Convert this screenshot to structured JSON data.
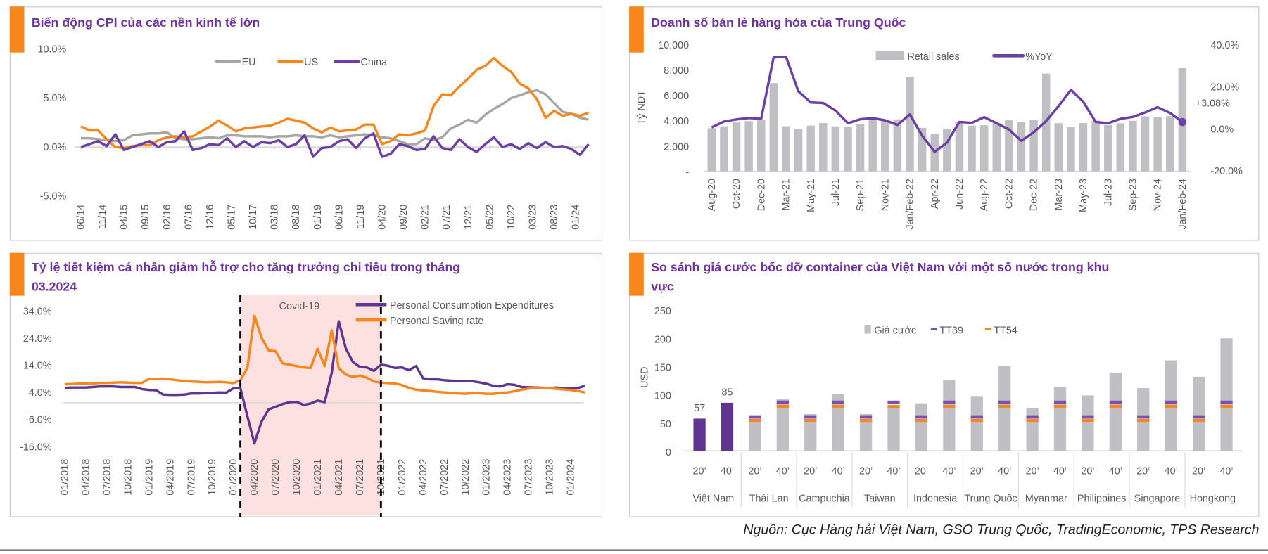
{
  "panels": {
    "cpi_title": "Biến động CPI của các nền kinh tế lớn",
    "retail_title": "Doanh số bán lẻ hàng hóa của Trung Quốc",
    "saving_title": "Tỷ lệ tiết kiệm cá nhân giảm hỗ trợ cho tăng trưởng chi tiêu trong tháng 03.2024",
    "container_title": "So sánh giá cước bốc dỡ container của Việt Nam với một số nước trong khu vực"
  },
  "footer": {
    "source": "Nguồn: Cục Hàng hải Việt Nam, GSO Trung Quốc, TradingEconomic, TPS Research"
  },
  "colors": {
    "accent_orange": "#f7861c",
    "title_purple": "#7030a0",
    "purple": "#6b3fa3",
    "gray": "#a6a6a6",
    "bar_gray": "#c0c0c4",
    "shade": "#fde0e0"
  },
  "chart_data": [
    {
      "type": "line",
      "title": "Biến động CPI của các nền kinh tế lớn",
      "ylim": [
        -5,
        10
      ],
      "yticks": [
        {
          "value": 10,
          "label": "10.0%"
        },
        {
          "value": 5,
          "label": "5.0%"
        },
        {
          "value": 0,
          "label": "0.0%"
        },
        {
          "value": -5,
          "label": "-5.0%"
        }
      ],
      "xticks": [
        "06/14",
        "11/14",
        "04/15",
        "09/15",
        "02/16",
        "07/16",
        "12/16",
        "05/17",
        "10/17",
        "03/18",
        "08/18",
        "01/19",
        "06/19",
        "11/19",
        "04/20",
        "09/20",
        "02/21",
        "07/21",
        "12/21",
        "05/22",
        "10/22",
        "03/23",
        "08/23",
        "01/24"
      ],
      "legend_position": "top",
      "x": [
        "06/14",
        "08/14",
        "10/14",
        "12/14",
        "02/15",
        "04/15",
        "06/15",
        "08/15",
        "10/15",
        "12/15",
        "02/16",
        "04/16",
        "06/16",
        "08/16",
        "10/16",
        "12/16",
        "02/17",
        "04/17",
        "06/17",
        "08/17",
        "10/17",
        "12/17",
        "02/18",
        "04/18",
        "06/18",
        "08/18",
        "10/18",
        "12/18",
        "02/19",
        "04/19",
        "06/19",
        "08/19",
        "10/19",
        "12/19",
        "02/20",
        "04/20",
        "06/20",
        "08/20",
        "10/20",
        "12/20",
        "02/21",
        "04/21",
        "06/21",
        "08/21",
        "10/21",
        "12/21",
        "02/22",
        "04/22",
        "06/22",
        "08/22",
        "10/22",
        "12/22",
        "02/23",
        "04/23",
        "06/23",
        "08/23",
        "10/23",
        "12/23",
        "02/24",
        "04/24"
      ],
      "series": [
        {
          "name": "EU",
          "color": "#a6a6a6",
          "values": [
            0.9,
            0.9,
            0.8,
            0.7,
            0.6,
            0.7,
            1.2,
            1.3,
            1.4,
            1.4,
            1.5,
            0.9,
            0.8,
            0.8,
            0.9,
            1.0,
            0.9,
            1.2,
            1.2,
            1.1,
            1.1,
            1.1,
            1.0,
            1.1,
            1.1,
            1.2,
            1.1,
            1.1,
            1.0,
            1.2,
            1.0,
            1.1,
            1.2,
            1.3,
            1.2,
            1.0,
            0.9,
            0.6,
            0.3,
            0.3,
            0.9,
            0.7,
            1.0,
            1.9,
            2.3,
            2.8,
            2.5,
            3.3,
            3.9,
            4.4,
            5.0,
            5.3,
            5.6,
            5.8,
            5.4,
            4.5,
            3.6,
            3.4,
            3.0,
            2.8
          ]
        },
        {
          "name": "US",
          "color": "#f7861c",
          "values": [
            2.1,
            1.7,
            1.7,
            0.8,
            0.0,
            -0.1,
            0.1,
            0.2,
            0.2,
            0.7,
            1.0,
            1.1,
            1.0,
            1.1,
            1.6,
            2.1,
            2.7,
            2.2,
            1.6,
            1.9,
            2.0,
            2.1,
            2.2,
            2.5,
            2.9,
            2.7,
            2.5,
            1.9,
            1.5,
            2.0,
            1.6,
            1.7,
            1.8,
            2.3,
            2.3,
            0.3,
            0.6,
            1.3,
            1.2,
            1.4,
            1.7,
            4.2,
            5.4,
            5.3,
            6.2,
            7.0,
            7.9,
            8.3,
            9.1,
            8.3,
            7.7,
            6.5,
            6.0,
            4.9,
            3.0,
            3.7,
            3.2,
            3.4,
            3.2,
            3.5
          ]
        },
        {
          "name": "China",
          "color": "#6b3fa3",
          "values": [
            0.0,
            0.3,
            0.6,
            0.1,
            1.3,
            -0.3,
            0.0,
            0.3,
            0.6,
            0.0,
            0.5,
            0.6,
            1.6,
            -0.3,
            -0.1,
            0.3,
            0.2,
            0.9,
            0.0,
            0.6,
            0.0,
            0.5,
            0.4,
            0.7,
            0.0,
            0.3,
            1.2,
            -1.0,
            -0.1,
            0.0,
            0.6,
            0.8,
            -0.1,
            0.9,
            1.4,
            -1.0,
            -0.7,
            0.3,
            0.1,
            -0.3,
            -0.2,
            1.1,
            -0.1,
            -0.3,
            0.8,
            0.0,
            -0.5,
            0.3,
            1.0,
            0.0,
            0.3,
            -0.2,
            0.4,
            -0.1,
            0.5,
            0.0,
            0.1,
            -0.2,
            -0.8,
            0.3
          ]
        }
      ]
    },
    {
      "type": "bar+line",
      "title": "Doanh số bán lẻ hàng hóa của Trung Quốc",
      "ylabel": "Tỷ NDT",
      "ylim": [
        0,
        10000
      ],
      "y2lim": [
        -20,
        40
      ],
      "yticks": [
        {
          "value": 10000,
          "label": "10,000"
        },
        {
          "value": 8000,
          "label": "8,000"
        },
        {
          "value": 6000,
          "label": "6,000"
        },
        {
          "value": 4000,
          "label": "4,000"
        },
        {
          "value": 2000,
          "label": "2,000"
        },
        {
          "value": 0,
          "label": "-"
        }
      ],
      "y2ticks": [
        {
          "value": 40,
          "label": "40.0%"
        },
        {
          "value": 20,
          "label": "20.0%"
        },
        {
          "value": 0,
          "label": "0.0%"
        },
        {
          "value": -20,
          "label": "-20.0%"
        }
      ],
      "xticks": [
        "Aug-20",
        "Oct-20",
        "Dec-20",
        "Mar-21",
        "May-21",
        "Jul-21",
        "Sep-21",
        "Nov-21",
        "Jan/Feb-22",
        "Apr-22",
        "Jun-22",
        "Aug-22",
        "Oct-22",
        "Dec-22",
        "Mar-23",
        "May-23",
        "Jul-23",
        "Sep-23",
        "Nov-24",
        "Jan/Feb-24"
      ],
      "legend_position": "top",
      "series": [
        {
          "name": "Retail sales",
          "type": "bar",
          "color": "#c0c0c4",
          "values": [
            3400,
            3550,
            3850,
            3950,
            4050,
            6950,
            3550,
            3320,
            3600,
            3800,
            3540,
            3490,
            3700,
            4050,
            4000,
            4100,
            7460,
            3420,
            2950,
            3350,
            3880,
            3600,
            3630,
            3800,
            4030,
            3860,
            4050,
            7700,
            3790,
            3490,
            3800,
            3990,
            3660,
            3780,
            3980,
            4330,
            4250,
            4350,
            8130
          ]
        },
        {
          "name": "%YoY",
          "type": "line",
          "axis": "right",
          "color": "#6b3fa3",
          "values": [
            0.5,
            3.3,
            4.3,
            5.0,
            4.6,
            33.8,
            34.2,
            17.7,
            12.4,
            12.1,
            8.5,
            2.5,
            4.4,
            4.9,
            3.9,
            1.7,
            6.7,
            -3.5,
            -11.1,
            -6.7,
            3.1,
            2.7,
            5.4,
            2.5,
            -0.5,
            -5.9,
            -1.8,
            3.5,
            10.6,
            18.4,
            12.7,
            3.1,
            2.5,
            4.6,
            5.5,
            7.6,
            10.1,
            7.4,
            3.08
          ]
        }
      ],
      "annotation": "+3.08%"
    },
    {
      "type": "line",
      "title": "Tỷ lệ tiết kiệm cá nhân giảm hỗ trợ cho tăng trưởng chi tiêu trong tháng 03.2024",
      "ylim": [
        -16,
        34
      ],
      "yticks": [
        {
          "value": 34,
          "label": "34.0%"
        },
        {
          "value": 24,
          "label": "24.0%"
        },
        {
          "value": 14,
          "label": "14.0%"
        },
        {
          "value": 4,
          "label": "4.0%"
        },
        {
          "value": -6,
          "label": "-6.0%"
        },
        {
          "value": -16,
          "label": "-16.0%"
        }
      ],
      "xticks": [
        "01/2018",
        "04/2018",
        "07/2018",
        "10/2018",
        "01/2019",
        "04/2019",
        "07/2019",
        "10/2019",
        "01/2020",
        "04/2020",
        "07/2020",
        "10/2020",
        "01/2021",
        "04/2021",
        "07/2021",
        "10/2021",
        "01/2022",
        "04/2022",
        "07/2022",
        "10/2022",
        "01/2023",
        "04/2023",
        "07/2023",
        "10/2023",
        "01/2024"
      ],
      "shaded_range": {
        "label": "Covid-19",
        "from": "02/2020",
        "to": "10/2021"
      },
      "legend_position": "top-right",
      "series": [
        {
          "name": "Personal Consumption Expenditures",
          "color": "#5f3591",
          "values_by_year": {
            "2018": [
              5.5,
              5.6,
              5.6,
              5.6,
              5.8,
              6.0,
              6.0,
              6.0,
              5.8,
              5.8,
              5.8,
              5.0
            ],
            "2019": [
              4.7,
              4.6,
              3.0,
              2.9,
              2.9,
              3.0,
              3.4,
              3.4,
              3.5,
              3.6,
              3.8,
              3.7
            ],
            "2020": [
              5.3,
              5.3,
              -5.0,
              -15.0,
              -7.0,
              -2.5,
              -1.5,
              -0.5,
              0.2,
              0.3,
              -0.8,
              -0.3
            ],
            "2021": [
              0.8,
              0.2,
              11.0,
              30.0,
              20.0,
              15.0,
              13.2,
              13.0,
              11.8,
              14.0,
              13.6,
              12.8
            ],
            "2022": [
              13.0,
              12.0,
              13.5,
              9.0,
              8.6,
              8.6,
              8.3,
              8.1,
              8.0,
              8.0,
              7.9,
              7.5
            ],
            "2023": [
              7.0,
              6.2,
              6.0,
              6.8,
              6.6,
              5.8,
              5.7,
              5.6,
              5.5,
              5.4,
              5.6,
              5.3
            ],
            "2024": [
              5.2,
              5.4,
              6.2
            ]
          }
        },
        {
          "name": "Personal Saving rate",
          "color": "#f7861c",
          "values_by_year": {
            "2018": [
              6.8,
              6.9,
              7.0,
              7.0,
              7.1,
              7.3,
              7.3,
              7.4,
              7.5,
              7.4,
              7.3,
              7.3
            ],
            "2019": [
              8.8,
              8.8,
              8.9,
              8.6,
              8.3,
              8.0,
              7.8,
              7.7,
              7.5,
              7.6,
              7.7,
              7.5
            ],
            "2020": [
              7.2,
              8.3,
              12.9,
              32.0,
              24.0,
              19.3,
              19.0,
              14.5,
              14.0,
              13.5,
              13.0,
              12.8
            ],
            "2021": [
              19.9,
              13.5,
              26.6,
              12.7,
              10.4,
              9.5,
              10.0,
              9.2,
              7.8,
              7.4,
              7.2,
              7.1
            ],
            "2022": [
              6.5,
              5.5,
              4.8,
              4.5,
              4.3,
              4.0,
              3.8,
              3.6,
              3.4,
              3.3,
              3.5,
              3.5
            ],
            "2023": [
              3.3,
              3.3,
              3.6,
              3.8,
              4.2,
              4.8,
              5.2,
              5.4,
              5.4,
              5.3,
              5.1,
              4.9
            ],
            "2024": [
              4.7,
              4.3,
              3.8
            ]
          }
        }
      ]
    },
    {
      "type": "bar",
      "title": "So sánh giá cước bốc dỡ container của Việt Nam với một số nước trong khu vực",
      "ylabel": "USD",
      "ylim": [
        0,
        250
      ],
      "yticks": [
        {
          "value": 250,
          "label": "250"
        },
        {
          "value": 200,
          "label": "200"
        },
        {
          "value": 150,
          "label": "150"
        },
        {
          "value": 100,
          "label": "100"
        },
        {
          "value": 50,
          "label": "50"
        },
        {
          "value": 0,
          "label": "0"
        }
      ],
      "legend": [
        {
          "name": "Giá cước",
          "color": "#c0c0c4"
        },
        {
          "name": "TT39",
          "color": "#7b4fae"
        },
        {
          "name": "TT54",
          "color": "#f7861c"
        }
      ],
      "legend_position": "top",
      "highlight_color": "#5f3591",
      "groups": [
        {
          "country": "Việt Nam",
          "bars": [
            {
              "size": "20’",
              "value": 57,
              "label": "57"
            },
            {
              "size": "40’",
              "value": 85,
              "label": "85"
            }
          ]
        },
        {
          "country": "Thái Lan",
          "bars": [
            {
              "size": "20’",
              "value": 60,
              "tt39": 60,
              "tt54": 54
            },
            {
              "size": "40’",
              "value": 91,
              "tt39": 86,
              "tt54": 79
            }
          ]
        },
        {
          "country": "Campuchia",
          "bars": [
            {
              "size": "20’",
              "value": 65,
              "tt39": 60,
              "tt54": 54
            },
            {
              "size": "40’",
              "value": 100,
              "tt39": 86,
              "tt54": 79
            }
          ]
        },
        {
          "country": "Taiwan",
          "bars": [
            {
              "size": "20’",
              "value": 65,
              "tt39": 60,
              "tt54": 54
            },
            {
              "size": "40’",
              "value": 75,
              "tt39": 86,
              "tt54": 79
            }
          ]
        },
        {
          "country": "Indonesia",
          "bars": [
            {
              "size": "20’",
              "value": 84,
              "tt39": 60,
              "tt54": 54
            },
            {
              "size": "40’",
              "value": 125,
              "tt39": 86,
              "tt54": 79
            }
          ]
        },
        {
          "country": "Trung Quốc",
          "bars": [
            {
              "size": "20’",
              "value": 97,
              "tt39": 60,
              "tt54": 54
            },
            {
              "size": "40’",
              "value": 150,
              "tt39": 86,
              "tt54": 79
            }
          ]
        },
        {
          "country": "Myanmar",
          "bars": [
            {
              "size": "20’",
              "value": 76,
              "tt39": 60,
              "tt54": 54
            },
            {
              "size": "40’",
              "value": 113,
              "tt39": 86,
              "tt54": 79
            }
          ]
        },
        {
          "country": "Philippines",
          "bars": [
            {
              "size": "20’",
              "value": 98,
              "tt39": 60,
              "tt54": 54
            },
            {
              "size": "40’",
              "value": 138,
              "tt39": 86,
              "tt54": 79
            }
          ]
        },
        {
          "country": "Singapore",
          "bars": [
            {
              "size": "20’",
              "value": 111,
              "tt39": 60,
              "tt54": 54
            },
            {
              "size": "40’",
              "value": 160,
              "tt39": 86,
              "tt54": 79
            }
          ]
        },
        {
          "country": "Hongkong",
          "bars": [
            {
              "size": "20’",
              "value": 131,
              "tt39": 60,
              "tt54": 54
            },
            {
              "size": "40’",
              "value": 199,
              "tt39": 86,
              "tt54": 79
            }
          ]
        }
      ]
    }
  ]
}
